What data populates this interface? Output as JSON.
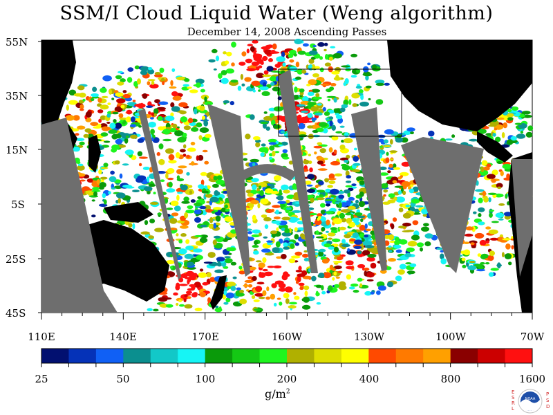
{
  "title": "SSM/I Cloud Liquid Water (Weng algorithm)",
  "subtitle": "December 14, 2008  Ascending Passes",
  "latitude_labels": [
    "55N",
    "35N",
    "15N",
    "5S",
    "25S",
    "45S"
  ],
  "longitude_labels": [
    "110E",
    "140E",
    "170E",
    "160W",
    "130W",
    "100W",
    "70W"
  ],
  "colorbar": {
    "colors": [
      "#021070",
      "#0532b8",
      "#1060f5",
      "#0b8f8f",
      "#12c8c8",
      "#16f5f5",
      "#0a9a0a",
      "#14c814",
      "#1ef51e",
      "#b0b000",
      "#dede00",
      "#ffff00",
      "#ff4a00",
      "#ff7a00",
      "#ffa000",
      "#8a0000",
      "#cc0000",
      "#ff1010"
    ],
    "tick_labels": [
      "25",
      "50",
      "100",
      "200",
      "400",
      "800",
      "1600"
    ],
    "units_label": "g/m",
    "units_sup": "2"
  },
  "logo": {
    "left_letters": "ESRL",
    "right_letters": "PSD",
    "name": "NOAA"
  },
  "colors": {
    "land": "#000000",
    "missing_data": "#6e6e6e",
    "ocean_clear": "#ffffff"
  }
}
